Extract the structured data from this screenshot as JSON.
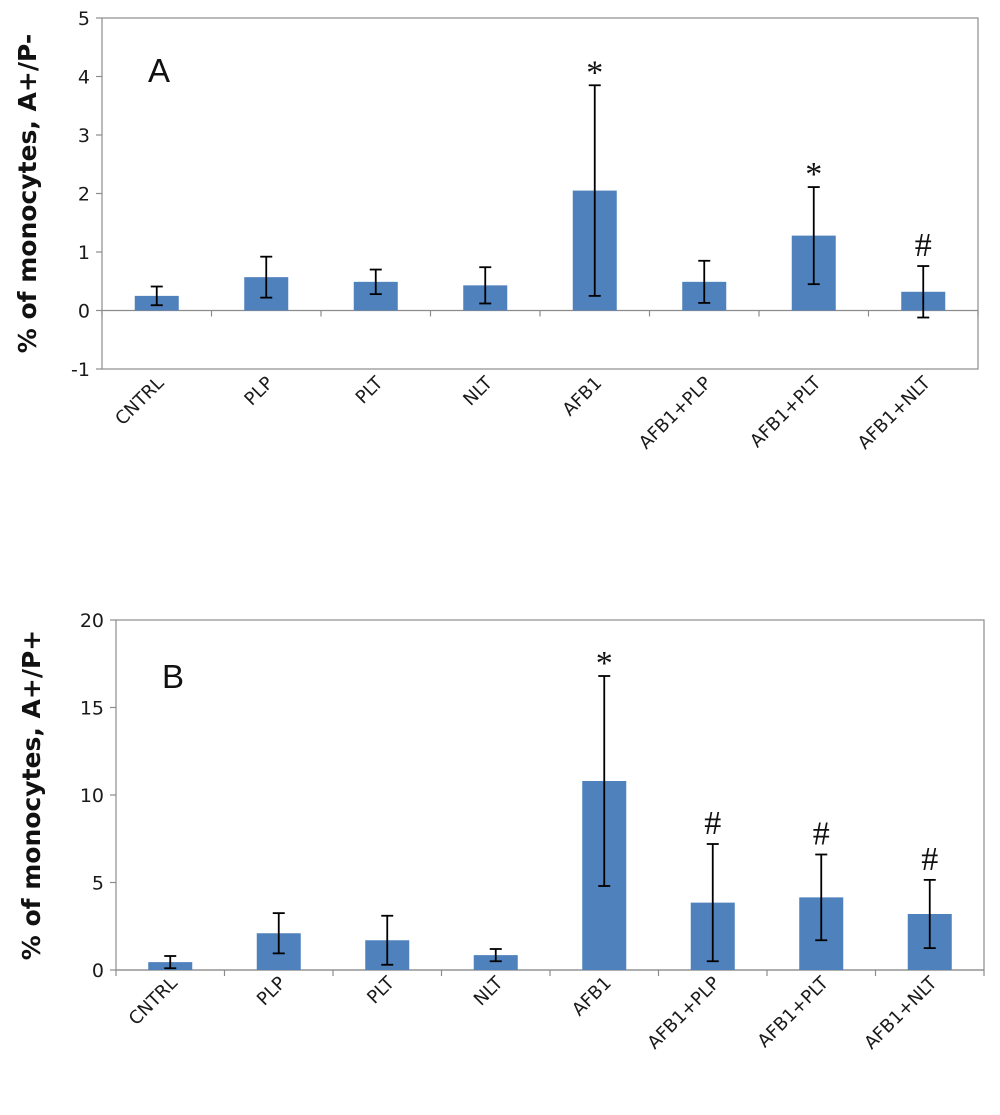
{
  "chart_data": [
    {
      "type": "bar",
      "panel_label": "A",
      "ylabel": "% of monocytes, A+/P-",
      "xlabel": "",
      "ylim": [
        -1,
        5
      ],
      "yticks": [
        -1,
        0,
        1,
        2,
        3,
        4,
        5
      ],
      "categories": [
        "CNTRL",
        "PLP",
        "PLT",
        "NLT",
        "AFB1",
        "AFB1+PLP",
        "AFB1+PLT",
        "AFB1+NLT"
      ],
      "values": [
        0.25,
        0.57,
        0.49,
        0.43,
        2.05,
        0.49,
        1.28,
        0.32
      ],
      "errors": [
        0.16,
        0.35,
        0.21,
        0.31,
        1.8,
        0.36,
        0.83,
        0.44
      ],
      "annotations": [
        "",
        "",
        "",
        "",
        "*",
        "",
        "*",
        "#"
      ],
      "bar_color": "#4f81bd",
      "grid": false,
      "legend": "none"
    },
    {
      "type": "bar",
      "panel_label": "B",
      "ylabel": "% of monocytes, A+/P+",
      "xlabel": "",
      "ylim": [
        0,
        20
      ],
      "yticks": [
        0,
        5,
        10,
        15,
        20
      ],
      "categories": [
        "CNTRL",
        "PLP",
        "PLT",
        "NLT",
        "AFB1",
        "AFB1+PLP",
        "AFB1+PLT",
        "AFB1+NLT"
      ],
      "values": [
        0.45,
        2.1,
        1.7,
        0.85,
        10.8,
        3.85,
        4.15,
        3.2
      ],
      "errors": [
        0.35,
        1.15,
        1.4,
        0.35,
        6.0,
        3.35,
        2.45,
        1.95
      ],
      "annotations": [
        "",
        "",
        "",
        "",
        "*",
        "#",
        "#",
        "#"
      ],
      "bar_color": "#4f81bd",
      "grid": false,
      "legend": "none"
    }
  ]
}
